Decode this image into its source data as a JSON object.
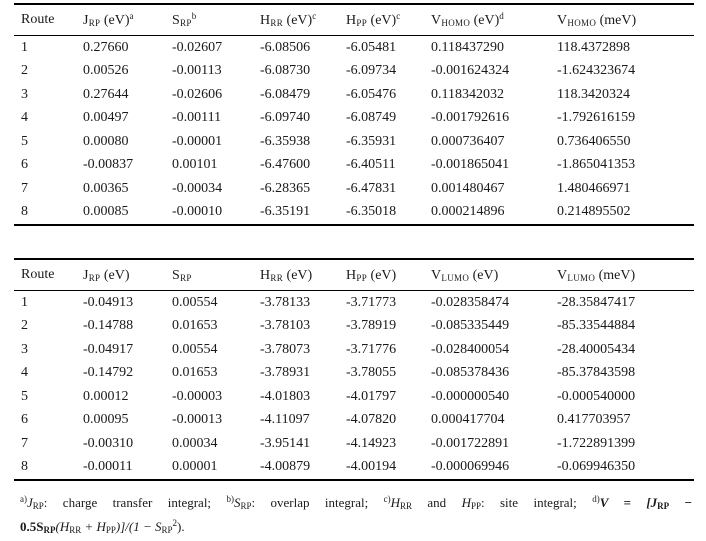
{
  "table1": {
    "headers": [
      {
        "main": "Route",
        "sub": "",
        "rest": "",
        "note": ""
      },
      {
        "main": "J",
        "sub": "RP",
        "rest": " (eV)",
        "note": "a"
      },
      {
        "main": "S",
        "sub": "RP",
        "rest": "",
        "note": "b"
      },
      {
        "main": "H",
        "sub": "RR",
        "rest": " (eV)",
        "note": "c"
      },
      {
        "main": "H",
        "sub": "PP",
        "rest": " (eV)",
        "note": "c"
      },
      {
        "main": "V",
        "sub": "HOMO",
        "rest": " (eV)",
        "note": "d"
      },
      {
        "main": "V",
        "sub": "HOMO",
        "rest": " (meV)",
        "note": ""
      }
    ],
    "rows": [
      [
        "1",
        "0.27660",
        "-0.02607",
        "-6.08506",
        "-6.05481",
        "0.118437290",
        "118.4372898"
      ],
      [
        "2",
        "0.00526",
        "-0.00113",
        "-6.08730",
        "-6.09734",
        "-0.001624324",
        "-1.624323674"
      ],
      [
        "3",
        "0.27644",
        "-0.02606",
        "-6.08479",
        "-6.05476",
        "0.118342032",
        "118.3420324"
      ],
      [
        "4",
        "0.00497",
        "-0.00111",
        "-6.09740",
        "-6.08749",
        "-0.001792616",
        "-1.792616159"
      ],
      [
        "5",
        "0.00080",
        "-0.00001",
        "-6.35938",
        "-6.35931",
        "0.000736407",
        "0.736406550"
      ],
      [
        "6",
        "-0.00837",
        "0.00101",
        "-6.47600",
        "-6.40511",
        "-0.001865041",
        "-1.865041353"
      ],
      [
        "7",
        "0.00365",
        "-0.00034",
        "-6.28365",
        "-6.47831",
        "0.001480467",
        "1.480466971"
      ],
      [
        "8",
        "0.00085",
        "-0.00010",
        "-6.35191",
        "-6.35018",
        "0.000214896",
        "0.214895502"
      ]
    ]
  },
  "table2": {
    "headers": [
      {
        "main": "Route",
        "sub": "",
        "rest": "",
        "note": ""
      },
      {
        "main": "J",
        "sub": "RP",
        "rest": " (eV)",
        "note": ""
      },
      {
        "main": "S",
        "sub": "RP",
        "rest": "",
        "note": ""
      },
      {
        "main": "H",
        "sub": "RR",
        "rest": " (eV)",
        "note": ""
      },
      {
        "main": "H",
        "sub": "PP",
        "rest": " (eV)",
        "note": ""
      },
      {
        "main": "V",
        "sub": "LUMO",
        "rest": " (eV)",
        "note": ""
      },
      {
        "main": "V",
        "sub": "LUMO",
        "rest": " (meV)",
        "note": ""
      }
    ],
    "rows": [
      [
        "1",
        "-0.04913",
        "0.00554",
        "-3.78133",
        "-3.71773",
        "-0.028358474",
        "-28.35847417"
      ],
      [
        "2",
        "-0.14788",
        "0.01653",
        "-3.78103",
        "-3.78919",
        "-0.085335449",
        "-85.33544884"
      ],
      [
        "3",
        "-0.04917",
        "0.00554",
        "-3.78073",
        "-3.71776",
        "-0.028400054",
        "-28.40005434"
      ],
      [
        "4",
        "-0.14792",
        "0.01653",
        "-3.78931",
        "-3.78055",
        "-0.085378436",
        "-85.37843598"
      ],
      [
        "5",
        "0.00012",
        "-0.00003",
        "-4.01803",
        "-4.01797",
        "-0.000000540",
        "-0.000540000"
      ],
      [
        "6",
        "0.00095",
        "-0.00013",
        "-4.11097",
        "-4.07820",
        "0.000417704",
        "0.417703957"
      ],
      [
        "7",
        "-0.00310",
        "0.00034",
        "-3.95141",
        "-4.14923",
        "-0.001722891",
        "-1.722891399"
      ],
      [
        "8",
        "-0.00011",
        "0.00001",
        "-4.00879",
        "-4.00194",
        "-0.000069946",
        "-0.069946350"
      ]
    ]
  },
  "footnote": {
    "a_mark": "a)",
    "a_sym": "J",
    "a_sub": "RP",
    "a_text": ": charge transfer integral; ",
    "b_mark": "b)",
    "b_sym": "S",
    "b_sub": "RP",
    "b_text": ": overlap integral; ",
    "c_mark": "c)",
    "c_sym1": "H",
    "c_sub1": "RR",
    "c_and": " and ",
    "c_sym2": "H",
    "c_sub2": "PP",
    "c_text": ": site integral; ",
    "d_mark": "d)",
    "d_formula_1": "V = [J",
    "d_formula_1_sub": "RP",
    "d_formula_1_end": " −",
    "d_formula_2a": "0.5S",
    "d_formula_2a_sub": "RP",
    "d_formula_2b": "(H",
    "d_formula_2b_sub": "RR",
    "d_formula_2c": " + H",
    "d_formula_2c_sub": "PP",
    "d_formula_2d": ")]/(1 − S",
    "d_formula_2d_sub": "RP",
    "d_formula_2d_sup": "2",
    "d_formula_2e": ")."
  }
}
